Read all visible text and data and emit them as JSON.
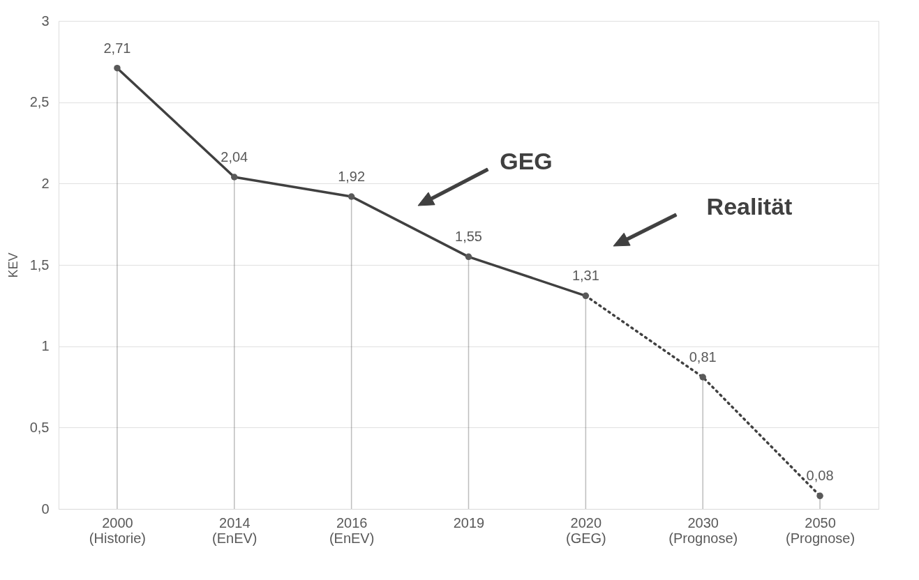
{
  "chart_data": {
    "type": "line",
    "ylabel": "KEV",
    "categories": [
      "2000\n(Historie)",
      "2014\n(EnEV)",
      "2016\n(EnEV)",
      "2019",
      "2020\n(GEG)",
      "2030\n(Prognose)",
      "2050\n(Prognose)"
    ],
    "series": [
      {
        "type": "lollipop",
        "color": "#595959",
        "marker": "circle",
        "values": [
          2.71,
          2.04,
          1.92,
          1.55,
          1.31,
          0.81,
          0.08
        ]
      },
      {
        "color": "#404040",
        "line_style": "solid",
        "marker": "none",
        "values": [
          2.71,
          2.04,
          1.92,
          1.55,
          1.31,
          null,
          null
        ],
        "value_labels": [
          "2,71",
          "2,04",
          "1,92",
          "1,55",
          "1,31",
          null,
          null
        ]
      },
      {
        "color": "#404040",
        "line_style": "dotted",
        "marker": "none",
        "values": [
          null,
          null,
          null,
          null,
          1.31,
          0.81,
          0.08
        ],
        "value_labels": [
          null,
          null,
          null,
          null,
          null,
          "0,81",
          "0,08"
        ]
      }
    ],
    "ylim": [
      0,
      3
    ],
    "yticks": [
      0,
      {
        "value": 0.5,
        "label": "0,5"
      },
      1,
      {
        "value": 1.5,
        "label": "1,5"
      },
      2,
      {
        "value": 2.5,
        "label": "2,5"
      },
      3
    ],
    "grid": "y",
    "annotations": [
      "GEG",
      "Realität"
    ]
  }
}
